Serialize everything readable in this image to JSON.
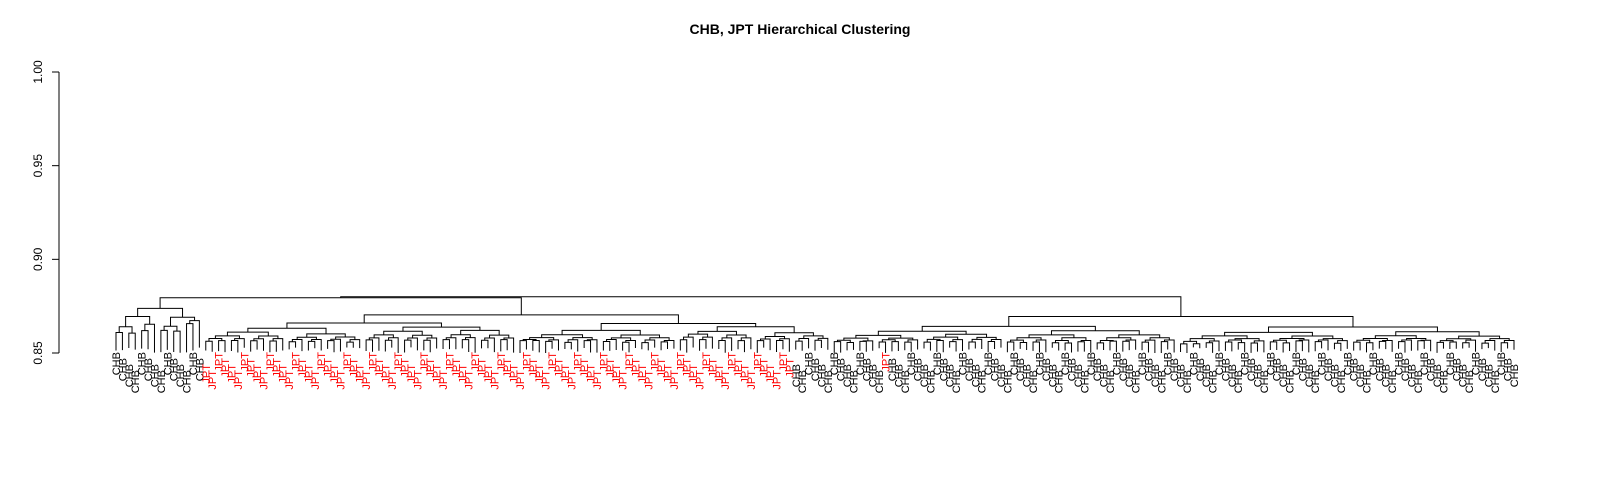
{
  "chart_data": {
    "type": "dendrogram",
    "title": "CHB, JPT Hierarchical Clustering",
    "xlabel": "",
    "ylabel": "",
    "ylim": [
      0.85,
      1.0
    ],
    "y_ticks": [
      "0.85",
      "0.90",
      "0.95",
      "1.00"
    ],
    "grid": false,
    "label_colors": {
      "CHB": "#000000",
      "JPT": "#ff0000"
    },
    "leaves": [
      "CHB",
      "CHB",
      "CHB",
      "CHB",
      "CHB",
      "CHB",
      "CHB",
      "CHB",
      "CHB",
      "CHB",
      "CHB",
      "CHB",
      "CHB",
      "CHB",
      "JPT",
      "JPT",
      "JPT",
      "JPT",
      "JPT",
      "JPT",
      "JPT",
      "JPT",
      "JPT",
      "JPT",
      "JPT",
      "JPT",
      "JPT",
      "JPT",
      "JPT",
      "JPT",
      "JPT",
      "JPT",
      "JPT",
      "JPT",
      "JPT",
      "JPT",
      "JPT",
      "JPT",
      "JPT",
      "JPT",
      "JPT",
      "JPT",
      "JPT",
      "JPT",
      "JPT",
      "JPT",
      "JPT",
      "JPT",
      "JPT",
      "JPT",
      "JPT",
      "JPT",
      "JPT",
      "JPT",
      "JPT",
      "JPT",
      "JPT",
      "JPT",
      "JPT",
      "JPT",
      "JPT",
      "JPT",
      "JPT",
      "JPT",
      "JPT",
      "JPT",
      "JPT",
      "JPT",
      "JPT",
      "JPT",
      "JPT",
      "JPT",
      "JPT",
      "JPT",
      "JPT",
      "JPT",
      "JPT",
      "JPT",
      "JPT",
      "JPT",
      "JPT",
      "JPT",
      "JPT",
      "JPT",
      "JPT",
      "JPT",
      "JPT",
      "JPT",
      "JPT",
      "JPT",
      "JPT",
      "JPT",
      "JPT",
      "JPT",
      "JPT",
      "JPT",
      "JPT",
      "JPT",
      "JPT",
      "JPT",
      "JPT",
      "JPT",
      "JPT",
      "JPT",
      "JPT",
      "JPT",
      "CHB",
      "CHB",
      "CHB",
      "CHB",
      "CHB",
      "CHB",
      "CHB",
      "CHB",
      "CHB",
      "CHB",
      "CHB",
      "CHB",
      "CHB",
      "CHB",
      "JPT",
      "CHB",
      "CHB",
      "CHB",
      "CHB",
      "CHB",
      "CHB",
      "CHB",
      "CHB",
      "CHB",
      "CHB",
      "CHB",
      "CHB",
      "CHB",
      "CHB",
      "CHB",
      "CHB",
      "CHB",
      "CHB",
      "CHB",
      "CHB",
      "CHB",
      "CHB",
      "CHB",
      "CHB",
      "CHB",
      "CHB",
      "CHB",
      "CHB",
      "CHB",
      "CHB",
      "CHB",
      "CHB",
      "CHB",
      "CHB",
      "CHB",
      "CHB",
      "CHB",
      "CHB",
      "CHB",
      "CHB",
      "CHB",
      "CHB",
      "CHB",
      "CHB",
      "CHB",
      "CHB",
      "CHB",
      "CHB",
      "CHB",
      "CHB",
      "CHB",
      "CHB",
      "CHB",
      "CHB",
      "CHB",
      "CHB",
      "CHB",
      "CHB",
      "CHB",
      "CHB",
      "CHB",
      "CHB",
      "CHB",
      "CHB",
      "CHB",
      "CHB",
      "CHB",
      "CHB",
      "CHB",
      "CHB",
      "CHB",
      "CHB",
      "CHB",
      "CHB",
      "CHB",
      "CHB",
      "CHB",
      "CHB",
      "CHB",
      "CHB",
      "CHB",
      "CHB",
      "CHB",
      "CHB",
      "CHB",
      "CHB",
      "CHB",
      "CHB",
      "CHB",
      "CHB",
      "CHB",
      "CHB",
      "CHB",
      "CHB",
      "CHB",
      "CHB",
      "CHB",
      "CHB"
    ],
    "root_height": 0.88,
    "left_branch_height": 0.8795,
    "right_branch_height": 0.8775
  }
}
